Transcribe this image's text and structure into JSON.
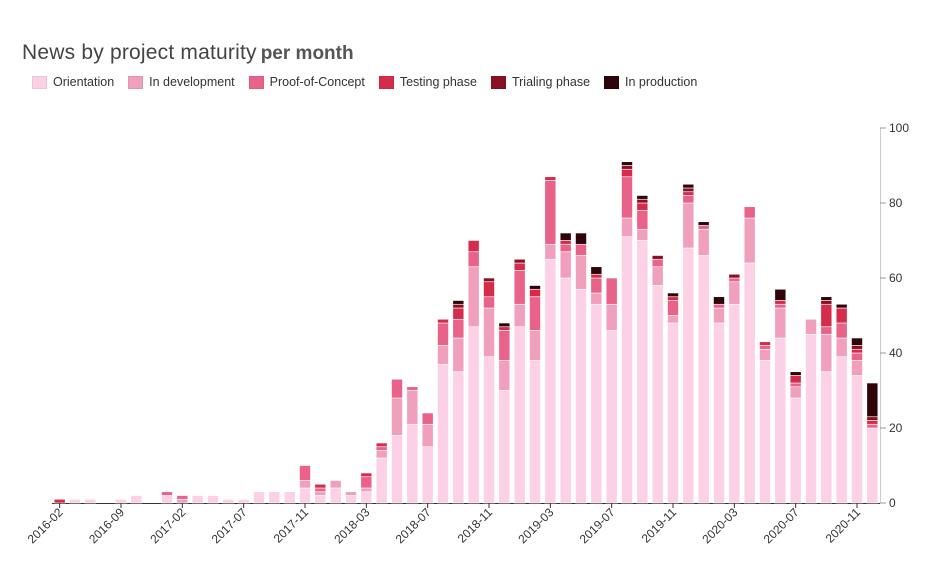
{
  "title": "News by project maturity",
  "subtitle": "per month",
  "chart_data": {
    "type": "bar",
    "stacked": true,
    "title": "News by project maturity",
    "subtitle": "per month",
    "legend_position": "top-left",
    "y_axis_side": "right",
    "ylim": [
      0,
      100
    ],
    "y_ticks": [
      0,
      20,
      40,
      60,
      80,
      100
    ],
    "x_tick_labels": [
      {
        "index": 0,
        "label": "2016-02"
      },
      {
        "index": 4,
        "label": "2016-09"
      },
      {
        "index": 8,
        "label": "2017-02"
      },
      {
        "index": 12,
        "label": "2017-07"
      },
      {
        "index": 16,
        "label": "2017-11"
      },
      {
        "index": 20,
        "label": "2018-03"
      },
      {
        "index": 24,
        "label": "2018-07"
      },
      {
        "index": 28,
        "label": "2018-11"
      },
      {
        "index": 32,
        "label": "2019-03"
      },
      {
        "index": 36,
        "label": "2019-07"
      },
      {
        "index": 40,
        "label": "2019-11"
      },
      {
        "index": 44,
        "label": "2020-03"
      },
      {
        "index": 48,
        "label": "2020-07"
      },
      {
        "index": 52,
        "label": "2020-11"
      }
    ],
    "series": [
      {
        "name": "Orientation",
        "color": "#fcd0e5",
        "values": [
          0,
          1,
          1,
          0,
          1,
          2,
          0,
          2,
          0,
          2,
          2,
          1,
          1,
          3,
          3,
          3,
          4,
          2,
          4,
          2,
          3,
          12,
          18,
          21,
          15,
          37,
          35,
          47,
          39,
          30,
          47,
          38,
          65,
          60,
          57,
          53,
          46,
          71,
          70,
          58,
          48,
          68,
          66,
          48,
          53,
          64,
          38,
          44,
          28,
          45,
          35,
          39,
          34,
          20
        ]
      },
      {
        "name": "In development",
        "color": "#f09fbc",
        "values": [
          0,
          0,
          0,
          0,
          0,
          0,
          0,
          0,
          1,
          0,
          0,
          0,
          0,
          0,
          0,
          0,
          2,
          1,
          2,
          1,
          1,
          2,
          10,
          9,
          6,
          5,
          9,
          16,
          13,
          8,
          6,
          8,
          4,
          7,
          9,
          3,
          7,
          5,
          3,
          5,
          2,
          12,
          7,
          4,
          6,
          12,
          3,
          8,
          3,
          4,
          10,
          5,
          4,
          0
        ]
      },
      {
        "name": "Proof-of-Concept",
        "color": "#e8628a",
        "values": [
          0,
          0,
          0,
          0,
          0,
          0,
          0,
          1,
          1,
          0,
          0,
          0,
          0,
          0,
          0,
          0,
          4,
          1,
          0,
          0,
          3,
          1,
          5,
          1,
          3,
          6,
          5,
          4,
          3,
          8,
          9,
          9,
          17,
          2,
          3,
          4,
          7,
          11,
          5,
          2,
          4,
          2,
          1,
          1,
          1,
          3,
          1,
          1,
          1,
          0,
          2,
          4,
          2,
          1
        ]
      },
      {
        "name": "Testing phase",
        "color": "#d62c4c",
        "values": [
          1,
          0,
          0,
          0,
          0,
          0,
          0,
          0,
          0,
          0,
          0,
          0,
          0,
          0,
          0,
          0,
          0,
          1,
          0,
          0,
          1,
          1,
          0,
          0,
          0,
          1,
          3,
          3,
          4,
          1,
          2,
          2,
          1,
          1,
          0,
          1,
          0,
          2,
          2,
          0,
          1,
          1,
          0,
          0,
          0,
          0,
          1,
          1,
          2,
          0,
          6,
          4,
          1,
          1
        ]
      },
      {
        "name": "Trialing phase",
        "color": "#8a1024",
        "values": [
          0,
          0,
          0,
          0,
          0,
          0,
          0,
          0,
          0,
          0,
          0,
          0,
          0,
          0,
          0,
          0,
          0,
          0,
          0,
          0,
          0,
          0,
          0,
          0,
          0,
          0,
          1,
          0,
          1,
          0,
          1,
          0,
          0,
          0,
          0,
          0,
          0,
          1,
          1,
          1,
          0,
          1,
          0,
          0,
          1,
          0,
          0,
          0,
          0,
          0,
          1,
          0,
          1,
          1
        ]
      },
      {
        "name": "In production",
        "color": "#2e0508",
        "values": [
          0,
          0,
          0,
          0,
          0,
          0,
          0,
          0,
          0,
          0,
          0,
          0,
          0,
          0,
          0,
          0,
          0,
          0,
          0,
          0,
          0,
          0,
          0,
          0,
          0,
          0,
          1,
          0,
          0,
          1,
          0,
          1,
          0,
          2,
          3,
          2,
          0,
          1,
          1,
          0,
          1,
          1,
          1,
          2,
          0,
          0,
          0,
          3,
          1,
          0,
          1,
          1,
          2,
          9
        ]
      }
    ]
  }
}
